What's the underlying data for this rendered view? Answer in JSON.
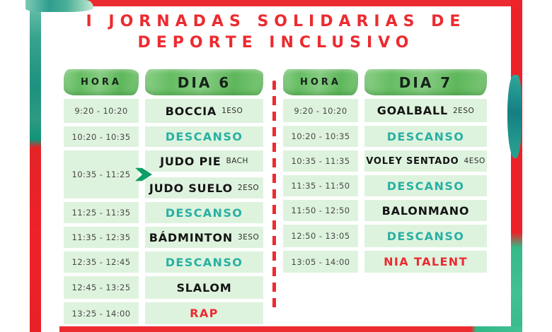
{
  "title": {
    "line1": "I JORNADAS SOLIDARIAS DE",
    "line2": "DEPORTE INCLUSIVO"
  },
  "colors": {
    "accent_red": "#ec2b30",
    "teal_text": "#28b0a2",
    "header_green": "#6fc06c",
    "cell_green": "#def3de",
    "arrow_green": "#0b9f66",
    "watercolor_teal": "#2f9e8f",
    "watercolor_green": "#3cbd8d"
  },
  "tables": [
    {
      "hora_header": "HORA",
      "day_header": "DIA 6",
      "rows": [
        {
          "time": "9:20 - 10:20",
          "activities": [
            {
              "label": "BOCCIA",
              "group": "1ESO",
              "style": "black"
            }
          ]
        },
        {
          "time": "10:20 - 10:35",
          "activities": [
            {
              "label": "DESCANSO",
              "style": "teal"
            }
          ]
        },
        {
          "time": "10:35 - 11:25",
          "arrow": "next-activity-arrow",
          "activities": [
            {
              "label": "JUDO PIE",
              "group": "BACH",
              "style": "black"
            },
            {
              "label": "JUDO SUELO",
              "group": "2ESO",
              "style": "black"
            }
          ]
        },
        {
          "time": "11:25 - 11:35",
          "activities": [
            {
              "label": "DESCANSO",
              "style": "teal"
            }
          ]
        },
        {
          "time": "11:35 - 12:35",
          "activities": [
            {
              "label": "BÁDMINTON",
              "group": "3ESO",
              "style": "black"
            }
          ]
        },
        {
          "time": "12:35 - 12:45",
          "activities": [
            {
              "label": "DESCANSO",
              "style": "teal"
            }
          ]
        },
        {
          "time": "12:45 - 13:25",
          "activities": [
            {
              "label": "SLALOM",
              "style": "black"
            }
          ]
        },
        {
          "time": "13:25 - 14:00",
          "activities": [
            {
              "label": "RAP",
              "style": "red"
            }
          ]
        }
      ]
    },
    {
      "hora_header": "HORA",
      "day_header": "DIA 7",
      "rows": [
        {
          "time": "9:20 - 10:20",
          "activities": [
            {
              "label": "GOALBALL",
              "group": "2ESO",
              "style": "black"
            }
          ]
        },
        {
          "time": "10:20 - 10:35",
          "activities": [
            {
              "label": "DESCANSO",
              "style": "teal"
            }
          ]
        },
        {
          "time": "10:35 - 11:35",
          "activities": [
            {
              "label": "VOLEY SENTADO",
              "group": "4ESO",
              "style": "black"
            }
          ]
        },
        {
          "time": "11:35 - 11:50",
          "activities": [
            {
              "label": "DESCANSO",
              "style": "teal"
            }
          ]
        },
        {
          "time": "11:50 - 12:50",
          "activities": [
            {
              "label": "BALONMANO",
              "style": "black"
            }
          ]
        },
        {
          "time": "12:50 - 13:05",
          "activities": [
            {
              "label": "DESCANSO",
              "style": "teal"
            }
          ]
        },
        {
          "time": "13:05 - 14:00",
          "activities": [
            {
              "label": "NIA TALENT",
              "style": "red"
            }
          ]
        }
      ]
    }
  ]
}
